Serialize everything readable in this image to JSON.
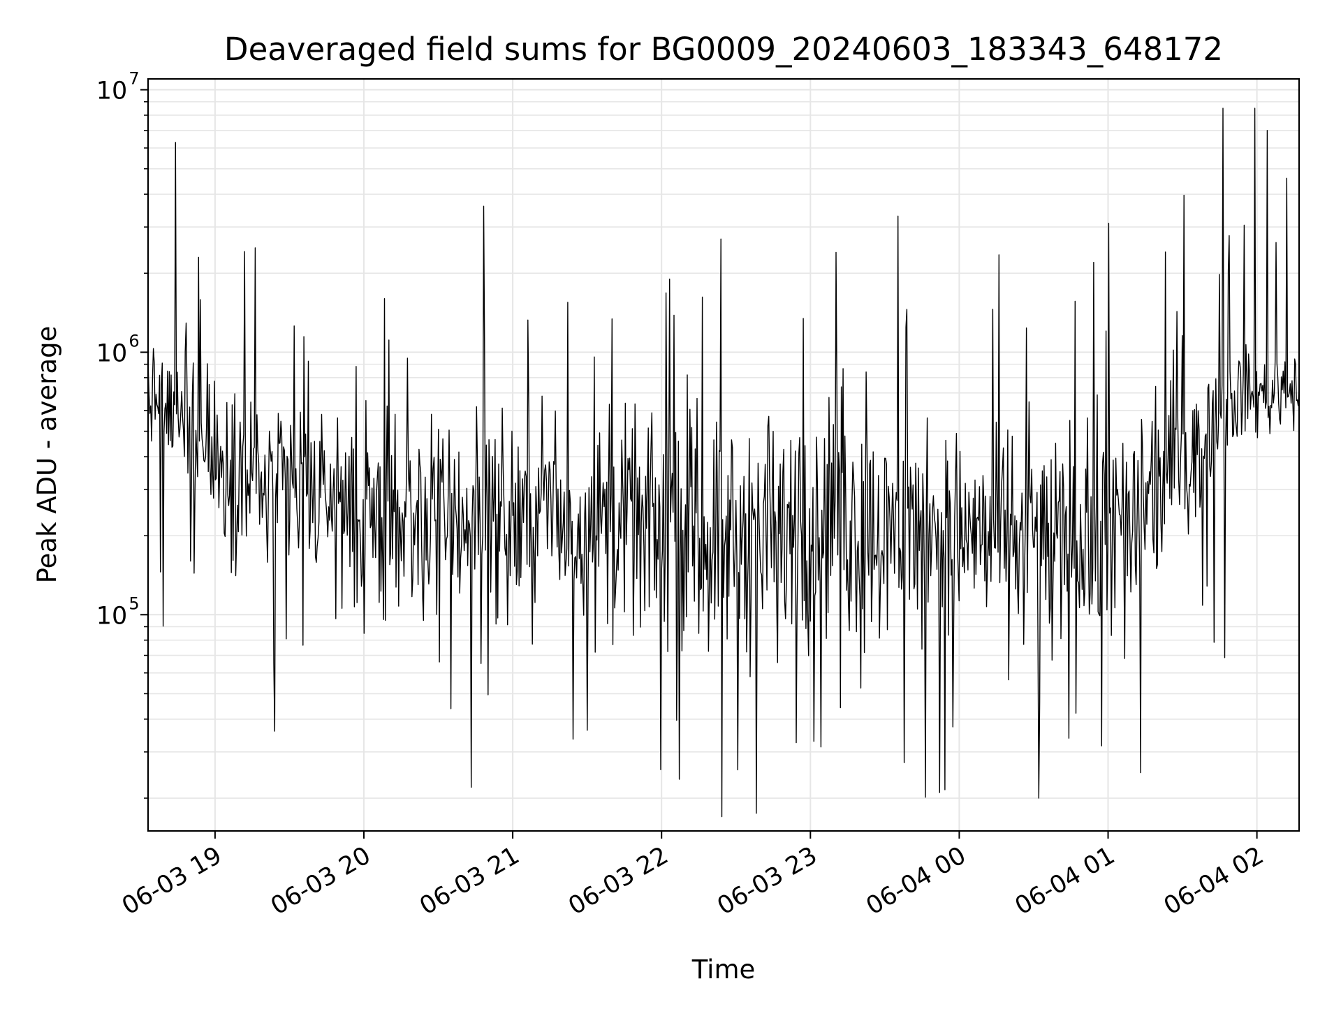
{
  "chart_data": {
    "type": "line",
    "title": "Deaveraged field sums for BG0009_20240603_183343_648172",
    "xlabel": "Time",
    "ylabel": "Peak ADU - average",
    "yscale": "log",
    "ylim": [
      15000,
      11000000
    ],
    "xlim": [
      "2024-06-03 18:33",
      "2024-06-04 02:17"
    ],
    "grid": true,
    "line_color": "#000000",
    "grid_color": "#e6e6e6",
    "x_ticks": [
      "06-03 19",
      "06-03 20",
      "06-03 21",
      "06-03 22",
      "06-03 23",
      "06-04 00",
      "06-04 01",
      "06-04 02"
    ],
    "y_ticks": [
      {
        "base": "10",
        "exp": "5",
        "value": 100000
      },
      {
        "base": "10",
        "exp": "6",
        "value": 1000000
      },
      {
        "base": "10",
        "exp": "7",
        "value": 10000000
      }
    ],
    "series": [
      {
        "x": [
          "2024-06-03 18:40",
          "2024-06-03 18:44",
          "2024-06-03 18:50",
          "2024-06-03 18:53",
          "2024-06-03 19:16",
          "2024-06-03 19:24",
          "2024-06-03 20:08",
          "2024-06-03 20:43",
          "2024-06-03 20:48",
          "2024-06-03 21:22",
          "2024-06-03 22:03",
          "2024-06-03 22:24",
          "2024-06-03 22:38",
          "2024-06-03 23:10",
          "2024-06-03 23:35",
          "2024-06-03 23:52",
          "2024-06-04 00:16",
          "2024-06-04 00:32",
          "2024-06-04 00:54",
          "2024-06-04 01:00",
          "2024-06-04 01:13",
          "2024-06-04 01:46",
          "2024-06-04 01:59",
          "2024-06-04 02:04",
          "2024-06-04 02:12"
        ],
        "values": [
          640000,
          6300000,
          160000,
          2300000,
          2500000,
          36000,
          1600000,
          22000,
          3600000,
          1550000,
          1900000,
          17000,
          17500,
          2400000,
          3300000,
          21000,
          2350000,
          20000,
          2200000,
          3100000,
          25000,
          8500000,
          8500000,
          7000000,
          4600000
        ]
      }
    ]
  }
}
